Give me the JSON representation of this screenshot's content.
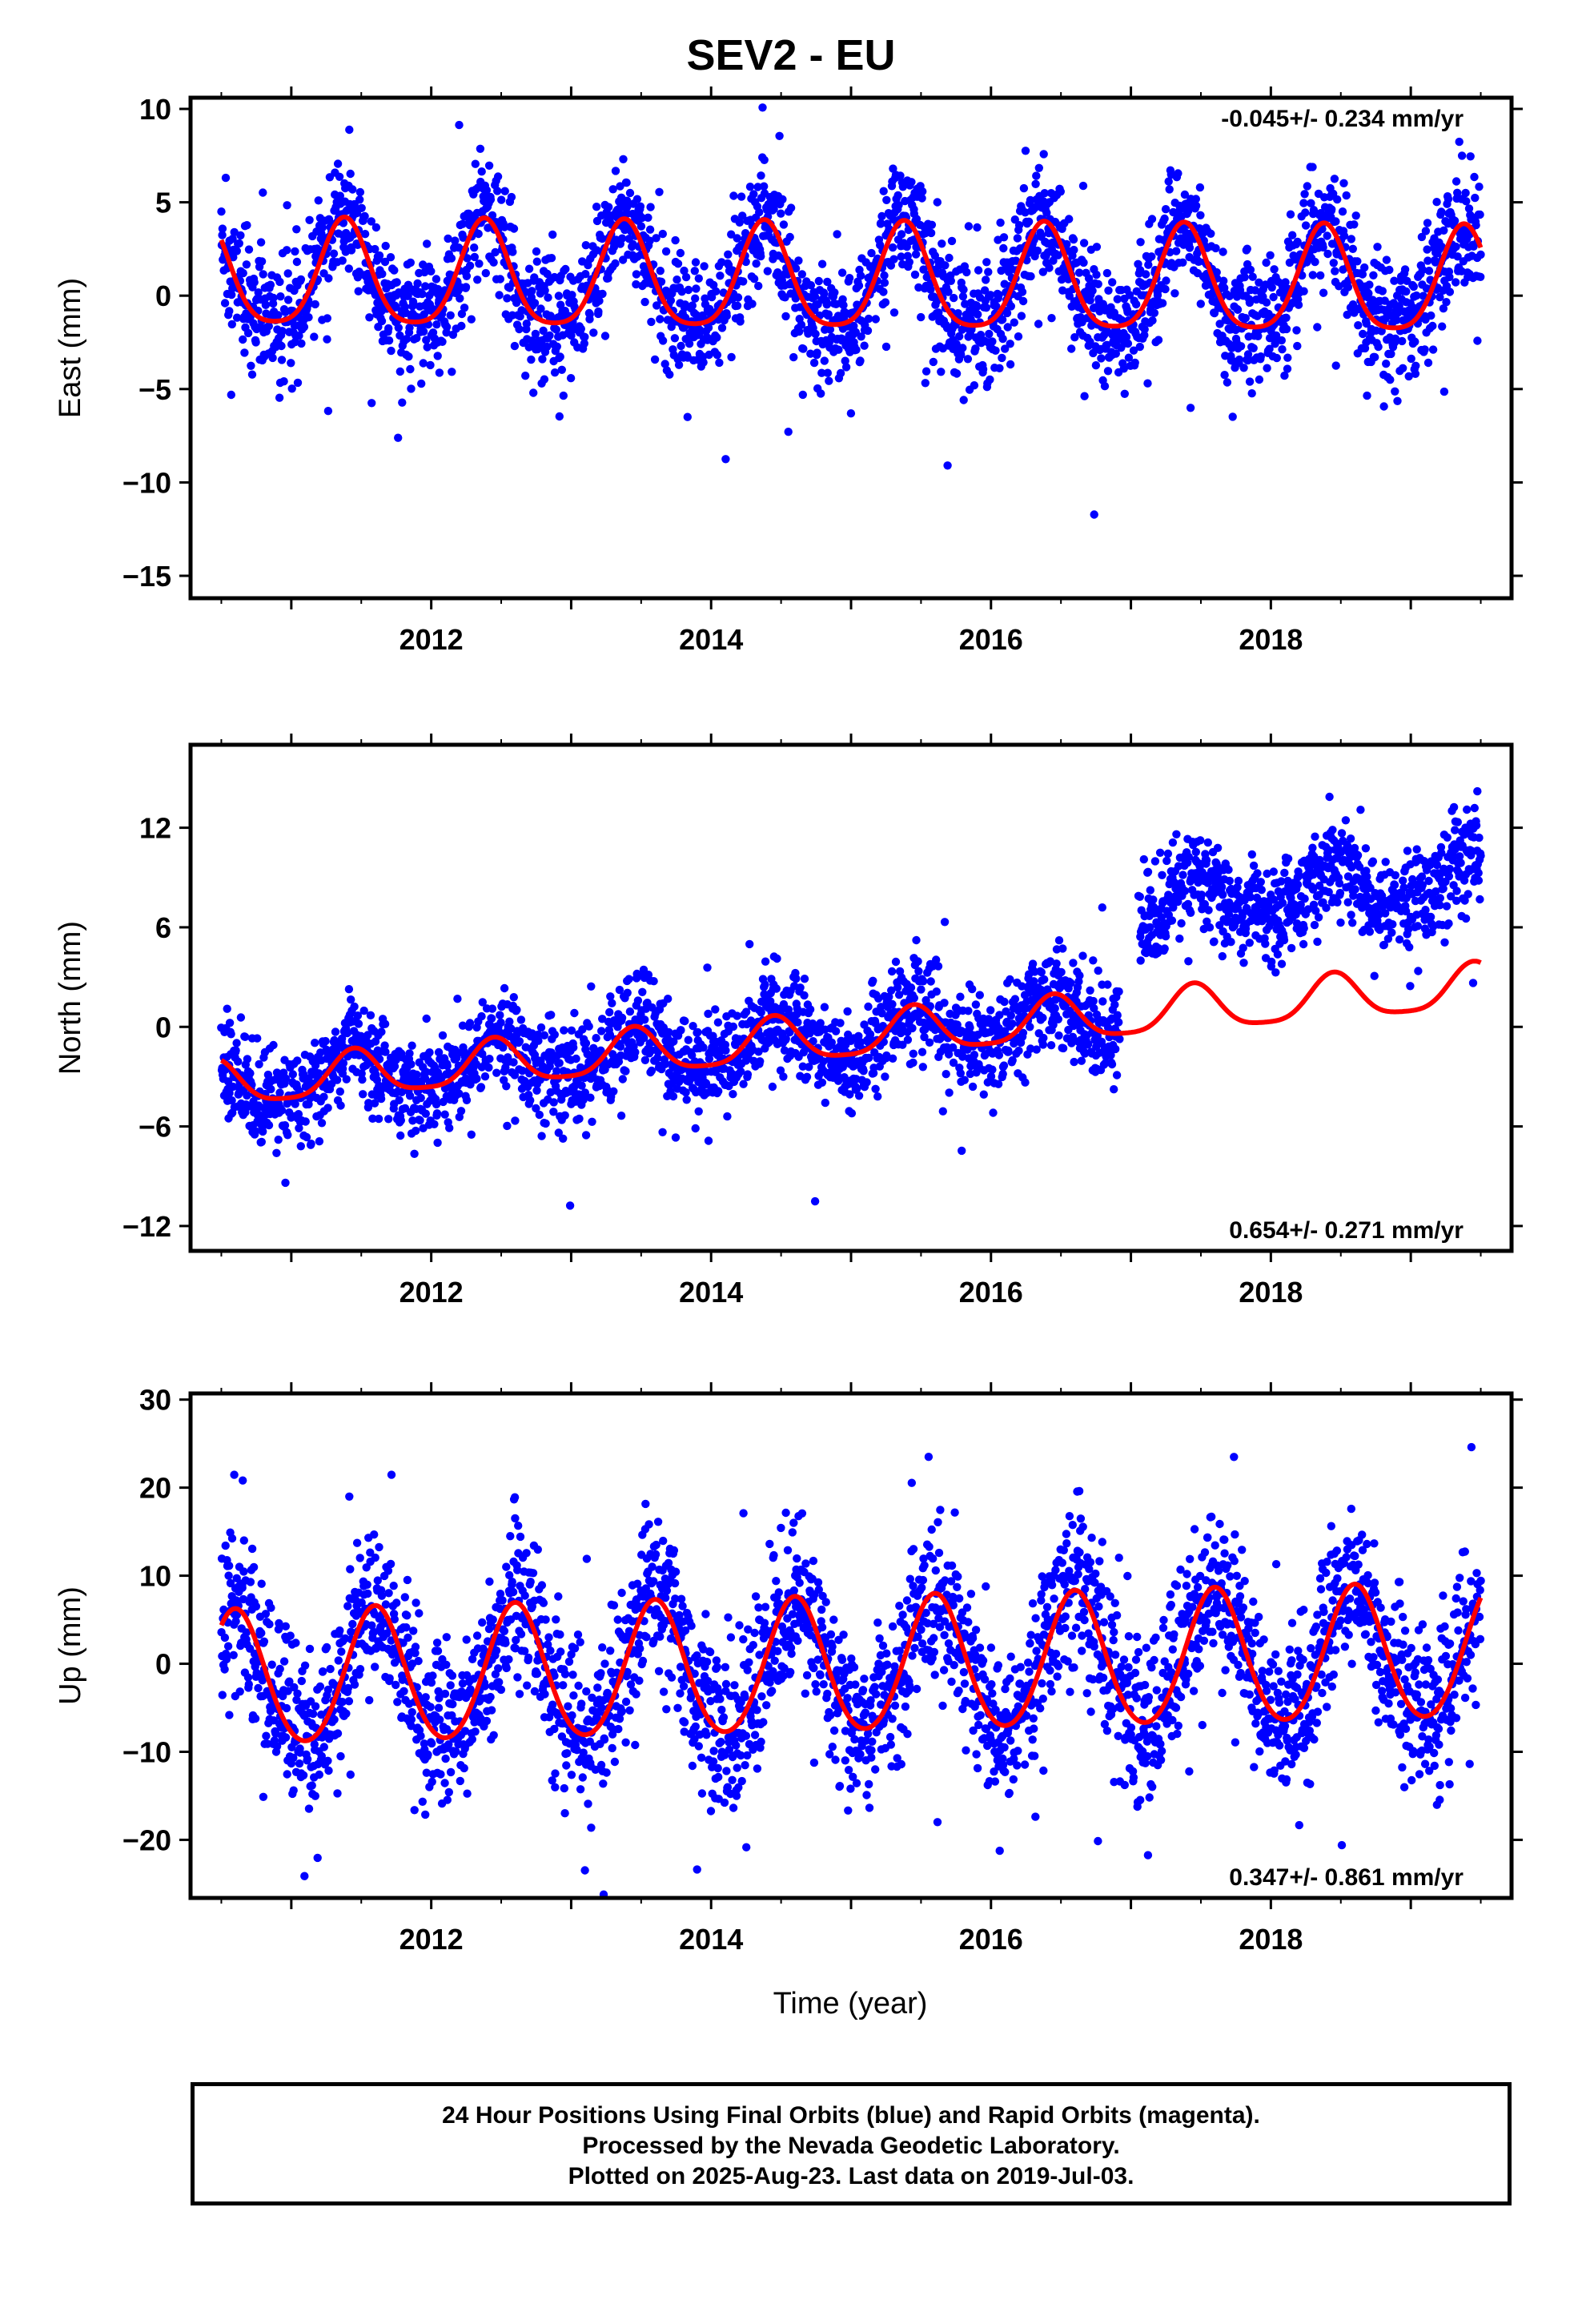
{
  "title": "SEV2 - EU",
  "xlabel": "Time (year)",
  "footer": {
    "line1": "24 Hour Positions Using Final Orbits (blue) and Rapid Orbits (magenta).",
    "line2": "Processed by the Nevada Geodetic Laboratory.",
    "line3": "Plotted on 2025-Aug-23. Last data on 2019-Jul-03."
  },
  "colors": {
    "points": "#0000ff",
    "fit": "#ff0000",
    "axes": "#000000"
  },
  "chart_data": [
    {
      "type": "scatter",
      "ylabel": "East (mm)",
      "rate": "-0.045+/- 0.234 mm/yr",
      "rate_position": "top-right",
      "xlim": [
        2010.28,
        2019.72
      ],
      "ylim": [
        -16.2,
        10.6
      ],
      "xticks": [
        2012,
        2014,
        2016,
        2018
      ],
      "yticks": [
        10,
        5,
        0,
        -5,
        -10,
        -15
      ],
      "data_start": 2010.5,
      "data_end": 2019.5,
      "fit": {
        "offset": 0.7,
        "trend": -0.045,
        "annual_amp": 2.8,
        "annual_phase_peak": 0.38,
        "semi_amp": 0.55,
        "semi_phase_peak": 0.38,
        "steps": []
      },
      "scatter_sd": 1.6,
      "outliers_pct": 2.5
    },
    {
      "type": "scatter",
      "ylabel": "North (mm)",
      "rate": "0.654+/- 0.271 mm/yr",
      "rate_position": "bottom-right",
      "xlim": [
        2010.28,
        2019.72
      ],
      "ylim": [
        -13.5,
        17.0
      ],
      "xticks": [
        2012,
        2014,
        2016,
        2018
      ],
      "yticks": [
        12,
        6,
        0,
        -6,
        -12
      ],
      "data_start": 2010.5,
      "data_end": 2019.5,
      "gap": [
        2016.92,
        2017.05
      ],
      "fit": {
        "offset": -0.6,
        "trend": 0.654,
        "annual_amp": 1.35,
        "annual_phase_peak": 0.45,
        "semi_amp": 0.3,
        "semi_phase_peak": 0.45,
        "steps": []
      },
      "data_steps": [
        {
          "at": 2017.02,
          "shift": 6.5
        }
      ],
      "scatter_sd": 1.5,
      "outliers_pct": 1.5
    },
    {
      "type": "scatter",
      "ylabel": "Up (mm)",
      "rate": "0.347+/- 0.861 mm/yr",
      "rate_position": "bottom-right",
      "xlim": [
        2010.28,
        2019.72
      ],
      "ylim": [
        -26.6,
        30.7
      ],
      "xticks": [
        2012,
        2014,
        2016,
        2018
      ],
      "yticks": [
        30,
        20,
        10,
        0,
        -10,
        -20
      ],
      "data_start": 2010.5,
      "data_end": 2019.5,
      "fit": {
        "offset": -0.4,
        "trend": 0.347,
        "annual_amp": 7.6,
        "annual_phase_peak": 0.6,
        "semi_amp": 0.6,
        "semi_phase_peak": 0.6,
        "steps": []
      },
      "scatter_sd": 4.6,
      "outliers_pct": 2.0
    }
  ]
}
